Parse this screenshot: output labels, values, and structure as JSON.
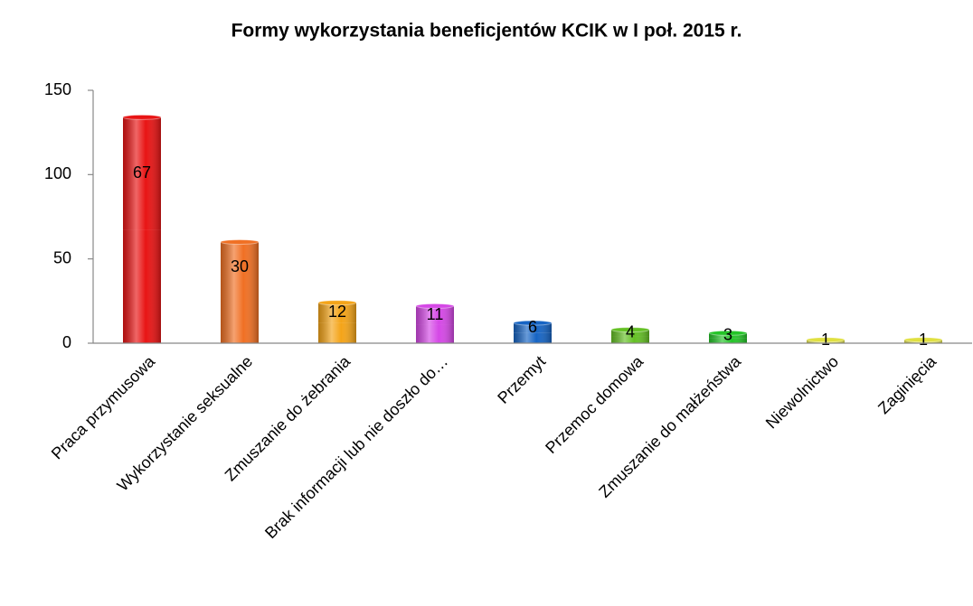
{
  "chart_data": {
    "type": "bar",
    "stacked": true,
    "title": "Formy wykorzystania beneficjentów KCIK w I poł. 2015 r.",
    "categories": [
      "Praca przymusowa",
      "Wykorzystanie seksualne",
      "Zmuszanie do żebrania",
      "Brak informacji lub nie doszło do…",
      "Przemyt",
      "Przemoc domowa",
      "Zmuszanie do małżeństwa",
      "Niewolnictwo",
      "Zaginięcia"
    ],
    "colors": [
      "#e81414",
      "#f07024",
      "#f4a418",
      "#d548e6",
      "#1664c4",
      "#64c024",
      "#24c428",
      "#e0e040",
      "#e0e040"
    ],
    "series": [
      {
        "values": [
          67,
          30,
          12,
          11,
          6,
          4,
          3,
          1,
          1
        ]
      },
      {
        "values": [
          67,
          30,
          12,
          11,
          6,
          4,
          3,
          1,
          1
        ]
      }
    ],
    "ylim": [
      0,
      150
    ],
    "yticks": [
      0,
      50,
      100,
      150
    ],
    "grid": false
  }
}
